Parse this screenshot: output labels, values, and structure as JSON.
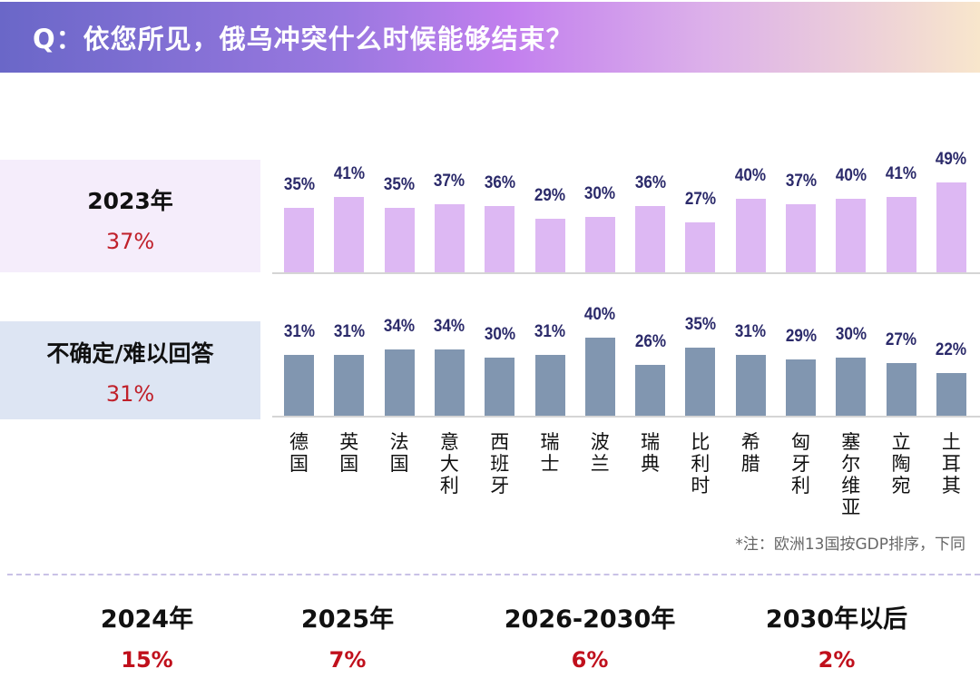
{
  "header": {
    "title": "Q：依您所见，俄乌冲突什么时候能够结束？"
  },
  "chart_data": {
    "type": "bar",
    "categories": [
      "德国",
      "英国",
      "法国",
      "意大利",
      "西班牙",
      "瑞士",
      "波兰",
      "瑞典",
      "比利时",
      "希腊",
      "匈牙利",
      "塞尔维亚",
      "立陶宛",
      "土耳其"
    ],
    "series": [
      {
        "name": "2023年",
        "summary": "37%",
        "color": "#ddb8f3",
        "values": [
          35,
          41,
          35,
          37,
          36,
          29,
          30,
          36,
          27,
          40,
          37,
          40,
          41,
          49
        ]
      },
      {
        "name": "不确定/难以回答",
        "summary": "31%",
        "color": "#8196b0",
        "values": [
          31,
          31,
          34,
          34,
          30,
          31,
          40,
          26,
          35,
          31,
          29,
          30,
          27,
          22
        ]
      }
    ],
    "unit": "%",
    "note": "*注：欧洲13国按GDP排序，下同"
  },
  "stats": [
    {
      "label": "2024年",
      "value": "15%"
    },
    {
      "label": "2025年",
      "value": "7%"
    },
    {
      "label": "2026-2030年",
      "value": "6%"
    },
    {
      "label": "2030年以后",
      "value": "2%"
    }
  ]
}
